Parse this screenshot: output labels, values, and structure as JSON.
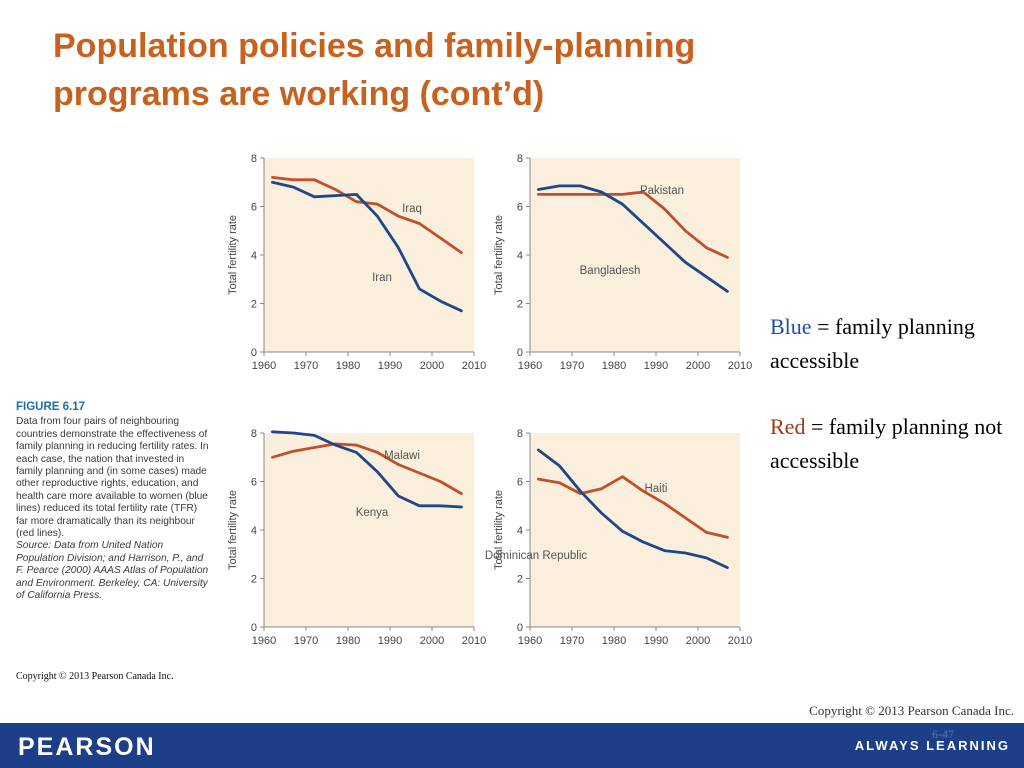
{
  "slide": {
    "title": "Population policies and family-planning programs are working (cont’d)",
    "copyright": "Copyright © 2013 Pearson Canada Inc.",
    "page_number": "6-47"
  },
  "figure": {
    "label": "FIGURE 6.17",
    "caption": "Data from four pairs of neighbouring countries demonstrate the effectiveness of family planning in reducing fertility rates. In each case, the nation that invested in family planning and (in some cases) made other reproductive rights, education, and health care more available to women (blue lines) reduced its total fertility rate (TFR) far more dramatically than its neighbour (red lines).",
    "source": "Source: Data from United Nation Population Division; and Harrison, P., and F. Pearce (2000) AAAS Atlas of Population and Environment. Berkeley, CA: University of California Press.",
    "copyright": "Copyright © 2013 Pearson Canada Inc."
  },
  "legend_note": {
    "blue_word": "Blue",
    "blue_text": "= family planning accessible",
    "red_word": "Red",
    "red_text": "= family planning not accessible"
  },
  "footer": {
    "brand": "PEARSON",
    "tagline": "ALWAYS LEARNING"
  },
  "colors": {
    "blue": "#1f4788",
    "red": "#c0502b",
    "plot_background": "#faeedd",
    "axis": "#888888",
    "title": "#c8611e",
    "footer": "#1c3f87"
  },
  "chart_data": [
    {
      "type": "line",
      "ylabel": "Total fertility rate",
      "xlim": [
        1960,
        2010
      ],
      "ylim": [
        0,
        8
      ],
      "x_ticks": [
        1960,
        1970,
        1980,
        1990,
        2000,
        2010
      ],
      "y_ticks": [
        0,
        2,
        4,
        6,
        8
      ],
      "x": [
        1962,
        1967,
        1972,
        1977,
        1982,
        1987,
        1992,
        1997,
        2002,
        2007
      ],
      "series": [
        {
          "name": "Iraq",
          "color": "red",
          "values": [
            7.2,
            7.1,
            7.1,
            6.7,
            6.2,
            6.1,
            5.6,
            5.3,
            4.7,
            4.1
          ]
        },
        {
          "name": "Iran",
          "color": "blue",
          "values": [
            7.0,
            6.8,
            6.4,
            6.45,
            6.5,
            5.6,
            4.3,
            2.6,
            2.1,
            1.7
          ]
        }
      ]
    },
    {
      "type": "line",
      "ylabel": "Total fertility rate",
      "xlim": [
        1960,
        2010
      ],
      "ylim": [
        0,
        8
      ],
      "x_ticks": [
        1960,
        1970,
        1980,
        1990,
        2000,
        2010
      ],
      "y_ticks": [
        0,
        2,
        4,
        6,
        8
      ],
      "x": [
        1962,
        1967,
        1972,
        1977,
        1982,
        1987,
        1992,
        1997,
        2002,
        2007
      ],
      "series": [
        {
          "name": "Pakistan",
          "color": "red",
          "values": [
            6.5,
            6.5,
            6.5,
            6.5,
            6.5,
            6.6,
            5.9,
            5.0,
            4.3,
            3.9
          ]
        },
        {
          "name": "Bangladesh",
          "color": "blue",
          "values": [
            6.7,
            6.85,
            6.85,
            6.6,
            6.1,
            5.3,
            4.5,
            3.7,
            3.1,
            2.5
          ]
        }
      ]
    },
    {
      "type": "line",
      "ylabel": "Total fertility rate",
      "xlim": [
        1960,
        2010
      ],
      "ylim": [
        0,
        8
      ],
      "x_ticks": [
        1960,
        1970,
        1980,
        1990,
        2000,
        2010
      ],
      "y_ticks": [
        0,
        2,
        4,
        6,
        8
      ],
      "x": [
        1962,
        1967,
        1972,
        1977,
        1982,
        1987,
        1992,
        1997,
        2002,
        2007
      ],
      "series": [
        {
          "name": "Malawi",
          "color": "red",
          "values": [
            7.0,
            7.25,
            7.4,
            7.55,
            7.5,
            7.2,
            6.7,
            6.35,
            6.0,
            5.5
          ]
        },
        {
          "name": "Kenya",
          "color": "blue",
          "values": [
            8.05,
            8.0,
            7.9,
            7.5,
            7.2,
            6.4,
            5.4,
            5.0,
            5.0,
            4.95
          ]
        }
      ]
    },
    {
      "type": "line",
      "ylabel": "Total fertility rate",
      "xlim": [
        1960,
        2010
      ],
      "ylim": [
        0,
        8
      ],
      "x_ticks": [
        1960,
        1970,
        1980,
        1990,
        2000,
        2010
      ],
      "y_ticks": [
        0,
        2,
        4,
        6,
        8
      ],
      "x": [
        1962,
        1967,
        1972,
        1977,
        1982,
        1987,
        1992,
        1997,
        2002,
        2007
      ],
      "series": [
        {
          "name": "Haiti",
          "color": "red",
          "values": [
            6.1,
            5.95,
            5.5,
            5.7,
            6.2,
            5.6,
            5.1,
            4.5,
            3.9,
            3.7
          ]
        },
        {
          "name": "Dominican Republic",
          "color": "blue",
          "values": [
            7.3,
            6.65,
            5.6,
            4.7,
            3.95,
            3.5,
            3.15,
            3.05,
            2.85,
            2.45
          ]
        }
      ]
    }
  ]
}
